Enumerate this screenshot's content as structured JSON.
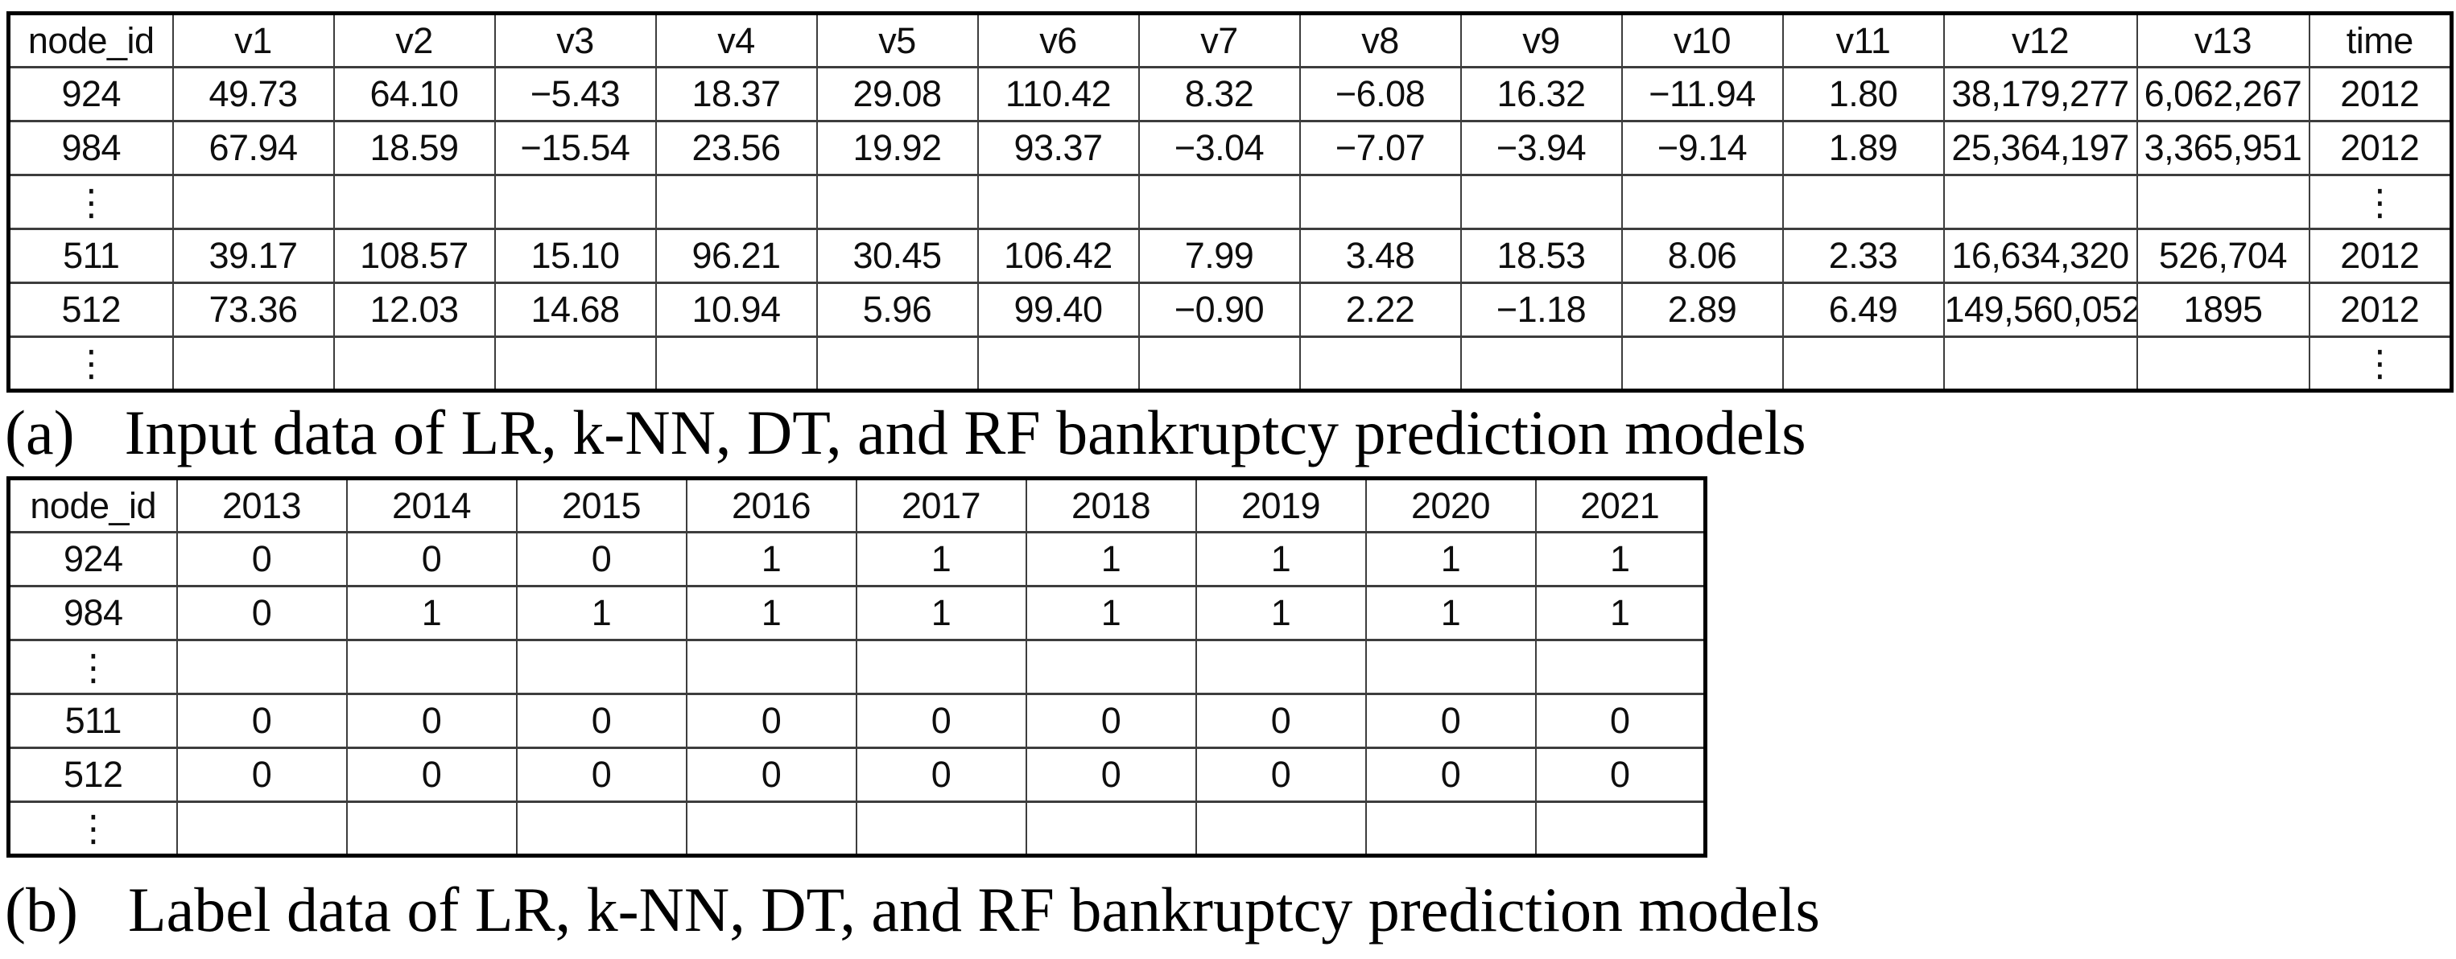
{
  "colors": {
    "background": "#ffffff",
    "table_outer_border": "#000000",
    "table_inner_border": "#3d3d3d",
    "text": "#0e0e0e"
  },
  "panel_a": {
    "caption_label": "(a)",
    "caption_text": "Input data of LR, k-NN, DT, and RF bankruptcy prediction models",
    "table": {
      "columns": [
        "node_id",
        "v1",
        "v2",
        "v3",
        "v4",
        "v5",
        "v6",
        "v7",
        "v8",
        "v9",
        "v10",
        "v11",
        "v12",
        "v13",
        "time"
      ],
      "rows": [
        [
          "924",
          "49.73",
          "64.10",
          "−5.43",
          "18.37",
          "29.08",
          "110.42",
          "8.32",
          "−6.08",
          "16.32",
          "−11.94",
          "1.80",
          "38,179,277",
          "6,062,267",
          "2012"
        ],
        [
          "984",
          "67.94",
          "18.59",
          "−15.54",
          "23.56",
          "19.92",
          "93.37",
          "−3.04",
          "−7.07",
          "−3.94",
          "−9.14",
          "1.89",
          "25,364,197",
          "3,365,951",
          "2012"
        ],
        [
          "⋮",
          "",
          "",
          "",
          "",
          "",
          "",
          "",
          "",
          "",
          "",
          "",
          "",
          "",
          "⋮"
        ],
        [
          "511",
          "39.17",
          "108.57",
          "15.10",
          "96.21",
          "30.45",
          "106.42",
          "7.99",
          "3.48",
          "18.53",
          "8.06",
          "2.33",
          "16,634,320",
          "526,704",
          "2012"
        ],
        [
          "512",
          "73.36",
          "12.03",
          "14.68",
          "10.94",
          "5.96",
          "99.40",
          "−0.90",
          "2.22",
          "−1.18",
          "2.89",
          "6.49",
          "149,560,052",
          "1895",
          "2012"
        ],
        [
          "⋮",
          "",
          "",
          "",
          "",
          "",
          "",
          "",
          "",
          "",
          "",
          "",
          "",
          "",
          "⋮"
        ]
      ]
    }
  },
  "panel_b": {
    "caption_label": "(b)",
    "caption_text": "Label data of LR, k-NN, DT, and RF bankruptcy prediction models",
    "table": {
      "columns": [
        "node_id",
        "2013",
        "2014",
        "2015",
        "2016",
        "2017",
        "2018",
        "2019",
        "2020",
        "2021"
      ],
      "rows": [
        [
          "924",
          "0",
          "0",
          "0",
          "1",
          "1",
          "1",
          "1",
          "1",
          "1"
        ],
        [
          "984",
          "0",
          "1",
          "1",
          "1",
          "1",
          "1",
          "1",
          "1",
          "1"
        ],
        [
          "⋮",
          "",
          "",
          "",
          "",
          "",
          "",
          "",
          "",
          ""
        ],
        [
          "511",
          "0",
          "0",
          "0",
          "0",
          "0",
          "0",
          "0",
          "0",
          "0"
        ],
        [
          "512",
          "0",
          "0",
          "0",
          "0",
          "0",
          "0",
          "0",
          "0",
          "0"
        ],
        [
          "⋮",
          "",
          "",
          "",
          "",
          "",
          "",
          "",
          "",
          ""
        ]
      ]
    }
  }
}
